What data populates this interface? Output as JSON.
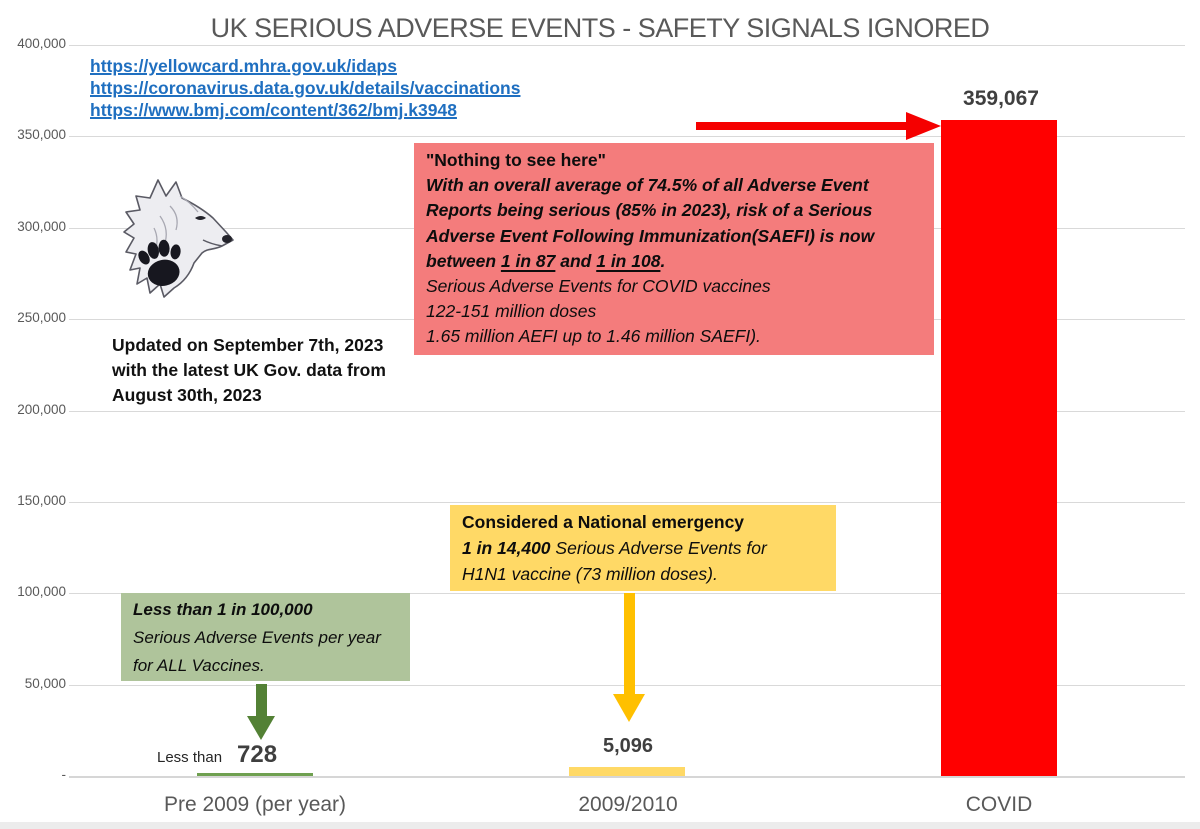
{
  "title": "UK SERIOUS ADVERSE EVENTS - SAFETY SIGNALS IGNORED",
  "links": [
    {
      "text": "https://yellowcard.mhra.gov.uk/idaps"
    },
    {
      "text": "https://coronavirus.data.gov.uk/details/vaccinations"
    },
    {
      "text": "https://www.bmj.com/content/362/bmj.k3948"
    }
  ],
  "updated_note": {
    "lines": [
      "Updated on September 7th, 2023",
      "with the latest UK Gov. data from",
      "August 30th, 2023"
    ]
  },
  "annotations": {
    "covid_box": {
      "heading": "\"Nothing to see here\"",
      "bold_italic_lines": [
        "With an overall average of 74.5% of all Adverse Event",
        "Reports being serious (85% in 2023), risk of a Serious",
        "Adverse Event Following Immunization(SAEFI) is now"
      ],
      "risk_prefix": "between ",
      "risk_low": "1 in 87",
      "risk_join": " and ",
      "risk_high": "1 in 108",
      "risk_suffix": ".",
      "italic_lines": [
        "Serious Adverse Events for COVID vaccines",
        "122-151 million doses",
        "1.65 million AEFI up to 1.46 million SAEFI)."
      ]
    },
    "h1n1_box": {
      "heading": "Considered a National emergency",
      "stat": "1 in 14,400",
      "stat_rest": " Serious Adverse Events for",
      "line3": "H1N1 vaccine (73 million doses)."
    },
    "pre2009_box": {
      "heading": "Less than 1 in 100,000",
      "line2": "Serious Adverse Events per year",
      "line3": "for ALL Vaccines."
    }
  },
  "bar_value_labels": {
    "covid": "359,067",
    "h1n1": "5,096",
    "pre2009_prefix": "Less than",
    "pre2009_value": "728"
  },
  "colors": {
    "covid_box_bg": "#F47C7C",
    "h1n1_box_bg": "#FFD966",
    "pre2009_box_bg": "#AFC49B",
    "covid_bar": "#FF0000",
    "h1n1_bar": "#FFD966",
    "pre2009_bar": "#6FA050",
    "red_arrow": "#F50000",
    "yellow_arrow": "#FFC000",
    "green_arrow": "#538135",
    "link_blue": "#1F6FC0",
    "title_gray": "#595959",
    "gridline": "#D9D9D9"
  },
  "chart_data": {
    "type": "bar",
    "title": "UK SERIOUS ADVERSE EVENTS - SAFETY SIGNALS IGNORED",
    "categories": [
      "Pre 2009 (per year)",
      "2009/2010",
      "COVID"
    ],
    "values": [
      728,
      5096,
      359067
    ],
    "value_labels": [
      "Less than 728",
      "5,096",
      "359,067"
    ],
    "bar_colors": [
      "#6FA050",
      "#FFD966",
      "#FF0000"
    ],
    "xlabel": "",
    "ylabel": "",
    "ylim": [
      0,
      400000
    ],
    "ytick_interval": 50000,
    "ytick_labels": [
      "400,000",
      "350,000",
      "300,000",
      "250,000",
      "200,000",
      "150,000",
      "100,000",
      "50,000",
      "-"
    ],
    "grid": true,
    "legend": false
  }
}
